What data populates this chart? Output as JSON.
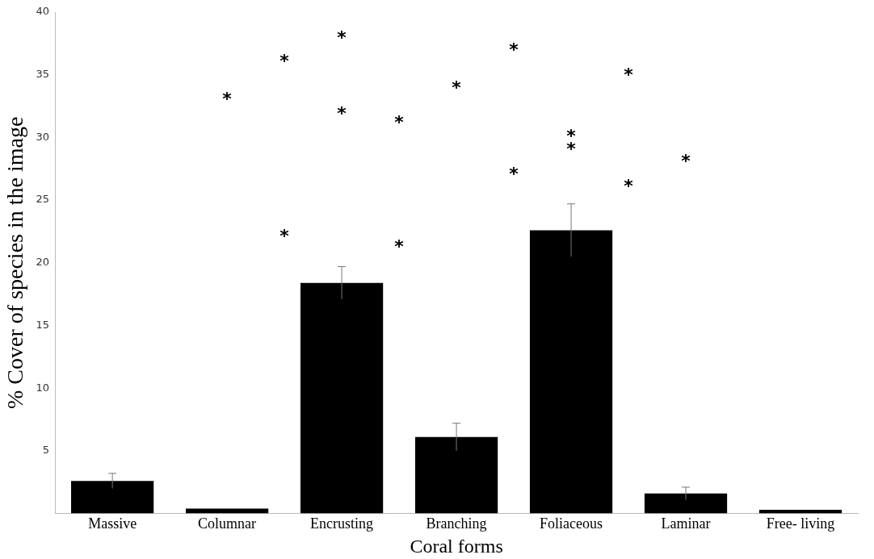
{
  "chart_data": {
    "type": "bar",
    "xlabel": "Coral forms",
    "ylabel": "% Cover of species in the image",
    "categories": [
      "Massive",
      "Columnar",
      "Encrusting",
      "Branching",
      "Foliaceous",
      "Laminar",
      "Free- living"
    ],
    "values": [
      2.6,
      0.4,
      18.4,
      6.1,
      22.6,
      1.6,
      0.3
    ],
    "errors": [
      0.6,
      null,
      1.3,
      1.1,
      2.1,
      0.5,
      null
    ],
    "color": "#000000",
    "ylim": [
      0,
      40
    ],
    "yticks": [
      5,
      10,
      15,
      20,
      25,
      30,
      35,
      40
    ],
    "grid": false,
    "legend": false,
    "annotations": [
      "*",
      "*",
      "*",
      "*",
      "*",
      "*",
      "*",
      "*",
      "*",
      "*",
      "*",
      "*",
      "*",
      "*",
      "*"
    ]
  }
}
